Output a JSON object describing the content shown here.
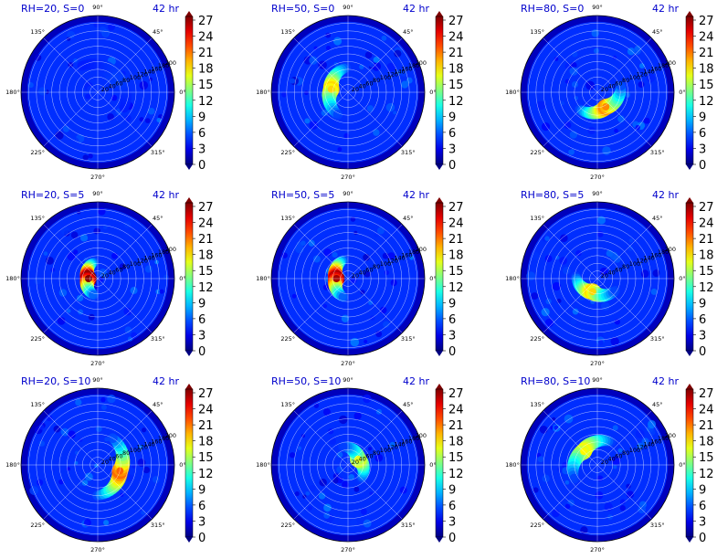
{
  "chart_data": [
    {
      "type": "heatmap",
      "subtype": "polar",
      "title": "RH=20, S=0",
      "time": "42 hr",
      "radial_ticks": [
        20,
        40,
        60,
        80,
        100,
        120,
        140,
        160,
        180,
        200
      ],
      "angle_ticks": [
        "0°",
        "45°",
        "90°",
        "135°",
        "180°",
        "225°",
        "270°",
        "315°"
      ],
      "colorbar": {
        "cmap": "jet",
        "range": [
          0,
          27
        ],
        "ticks": [
          0,
          3,
          6,
          9,
          12,
          15,
          18,
          21,
          24,
          27
        ]
      },
      "core": {
        "theta": 45,
        "r": 0.3,
        "peak": 5
      }
    },
    {
      "type": "heatmap",
      "subtype": "polar",
      "title": "RH=50, S=0",
      "time": "42 hr",
      "radial_ticks": [
        20,
        40,
        60,
        80,
        100,
        120,
        140,
        160,
        180,
        200
      ],
      "angle_ticks": [
        "0°",
        "45°",
        "90°",
        "135°",
        "180°",
        "225°",
        "270°",
        "315°"
      ],
      "colorbar": {
        "cmap": "jet",
        "range": [
          0,
          27
        ],
        "ticks": [
          0,
          3,
          6,
          9,
          12,
          15,
          18,
          21,
          24,
          27
        ]
      },
      "core": {
        "theta": 170,
        "r": 0.22,
        "peak": 18
      }
    },
    {
      "type": "heatmap",
      "subtype": "polar",
      "title": "RH=80, S=0",
      "time": "42 hr",
      "radial_ticks": [
        20,
        40,
        60,
        80,
        100,
        120,
        140,
        160,
        180,
        200
      ],
      "angle_ticks": [
        "0°",
        "45°",
        "90°",
        "135°",
        "180°",
        "225°",
        "270°",
        "315°"
      ],
      "colorbar": {
        "cmap": "jet",
        "range": [
          0,
          27
        ],
        "ticks": [
          0,
          3,
          6,
          9,
          12,
          15,
          18,
          21,
          24,
          27
        ]
      },
      "core": {
        "theta": 300,
        "r": 0.22,
        "peak": 20
      }
    },
    {
      "type": "heatmap",
      "subtype": "polar",
      "title": "RH=20, S=5",
      "time": "42 hr",
      "radial_ticks": [
        20,
        40,
        60,
        80,
        100,
        120,
        140,
        160,
        180,
        200
      ],
      "angle_ticks": [
        "0°",
        "45°",
        "90°",
        "135°",
        "180°",
        "225°",
        "270°",
        "315°"
      ],
      "colorbar": {
        "cmap": "jet",
        "range": [
          0,
          27
        ],
        "ticks": [
          0,
          3,
          6,
          9,
          12,
          15,
          18,
          21,
          24,
          27
        ]
      },
      "core": {
        "theta": 180,
        "r": 0.12,
        "peak": 27
      }
    },
    {
      "type": "heatmap",
      "subtype": "polar",
      "title": "RH=50, S=5",
      "time": "42 hr",
      "radial_ticks": [
        20,
        40,
        60,
        80,
        100,
        120,
        140,
        160,
        180,
        200
      ],
      "angle_ticks": [
        "0°",
        "45°",
        "90°",
        "135°",
        "180°",
        "225°",
        "270°",
        "315°"
      ],
      "colorbar": {
        "cmap": "jet",
        "range": [
          0,
          27
        ],
        "ticks": [
          0,
          3,
          6,
          9,
          12,
          15,
          18,
          21,
          24,
          27
        ]
      },
      "core": {
        "theta": 180,
        "r": 0.15,
        "peak": 26
      }
    },
    {
      "type": "heatmap",
      "subtype": "polar",
      "title": "RH=80, S=5",
      "time": "42 hr",
      "radial_ticks": [
        20,
        40,
        60,
        80,
        100,
        120,
        140,
        160,
        180,
        200
      ],
      "angle_ticks": [
        "0°",
        "45°",
        "90°",
        "135°",
        "180°",
        "225°",
        "270°",
        "315°"
      ],
      "colorbar": {
        "cmap": "jet",
        "range": [
          0,
          27
        ],
        "ticks": [
          0,
          3,
          6,
          9,
          12,
          15,
          18,
          21,
          24,
          27
        ]
      },
      "core": {
        "theta": 250,
        "r": 0.18,
        "peak": 18
      }
    },
    {
      "type": "heatmap",
      "subtype": "polar",
      "title": "RH=20, S=10",
      "time": "42 hr",
      "radial_ticks": [
        20,
        40,
        60,
        80,
        100,
        120,
        140,
        160,
        180,
        200
      ],
      "angle_ticks": [
        "0°",
        "45°",
        "90°",
        "135°",
        "180°",
        "225°",
        "270°",
        "315°"
      ],
      "colorbar": {
        "cmap": "jet",
        "range": [
          0,
          27
        ],
        "ticks": [
          0,
          3,
          6,
          9,
          12,
          15,
          18,
          21,
          24,
          27
        ]
      },
      "core": {
        "theta": 345,
        "r": 0.3,
        "peak": 21
      }
    },
    {
      "type": "heatmap",
      "subtype": "polar",
      "title": "RH=50, S=10",
      "time": "42 hr",
      "radial_ticks": [
        20,
        40,
        60,
        80,
        100,
        120,
        140,
        160,
        180,
        200
      ],
      "angle_ticks": [
        "0°",
        "45°",
        "90°",
        "135°",
        "180°",
        "225°",
        "270°",
        "315°"
      ],
      "colorbar": {
        "cmap": "jet",
        "range": [
          0,
          27
        ],
        "ticks": [
          0,
          3,
          6,
          9,
          12,
          15,
          18,
          21,
          24,
          27
        ]
      },
      "core": {
        "theta": 30,
        "r": 0.15,
        "peak": 16
      }
    },
    {
      "type": "heatmap",
      "subtype": "polar",
      "title": "RH=80, S=10",
      "time": "42 hr",
      "radial_ticks": [
        20,
        40,
        60,
        80,
        100,
        120,
        140,
        160,
        180,
        200
      ],
      "angle_ticks": [
        "0°",
        "45°",
        "90°",
        "135°",
        "180°",
        "225°",
        "270°",
        "315°"
      ],
      "colorbar": {
        "cmap": "jet",
        "range": [
          0,
          27
        ],
        "ticks": [
          0,
          3,
          6,
          9,
          12,
          15,
          18,
          21,
          24,
          27
        ]
      },
      "core": {
        "theta": 135,
        "r": 0.25,
        "peak": 17
      }
    }
  ]
}
